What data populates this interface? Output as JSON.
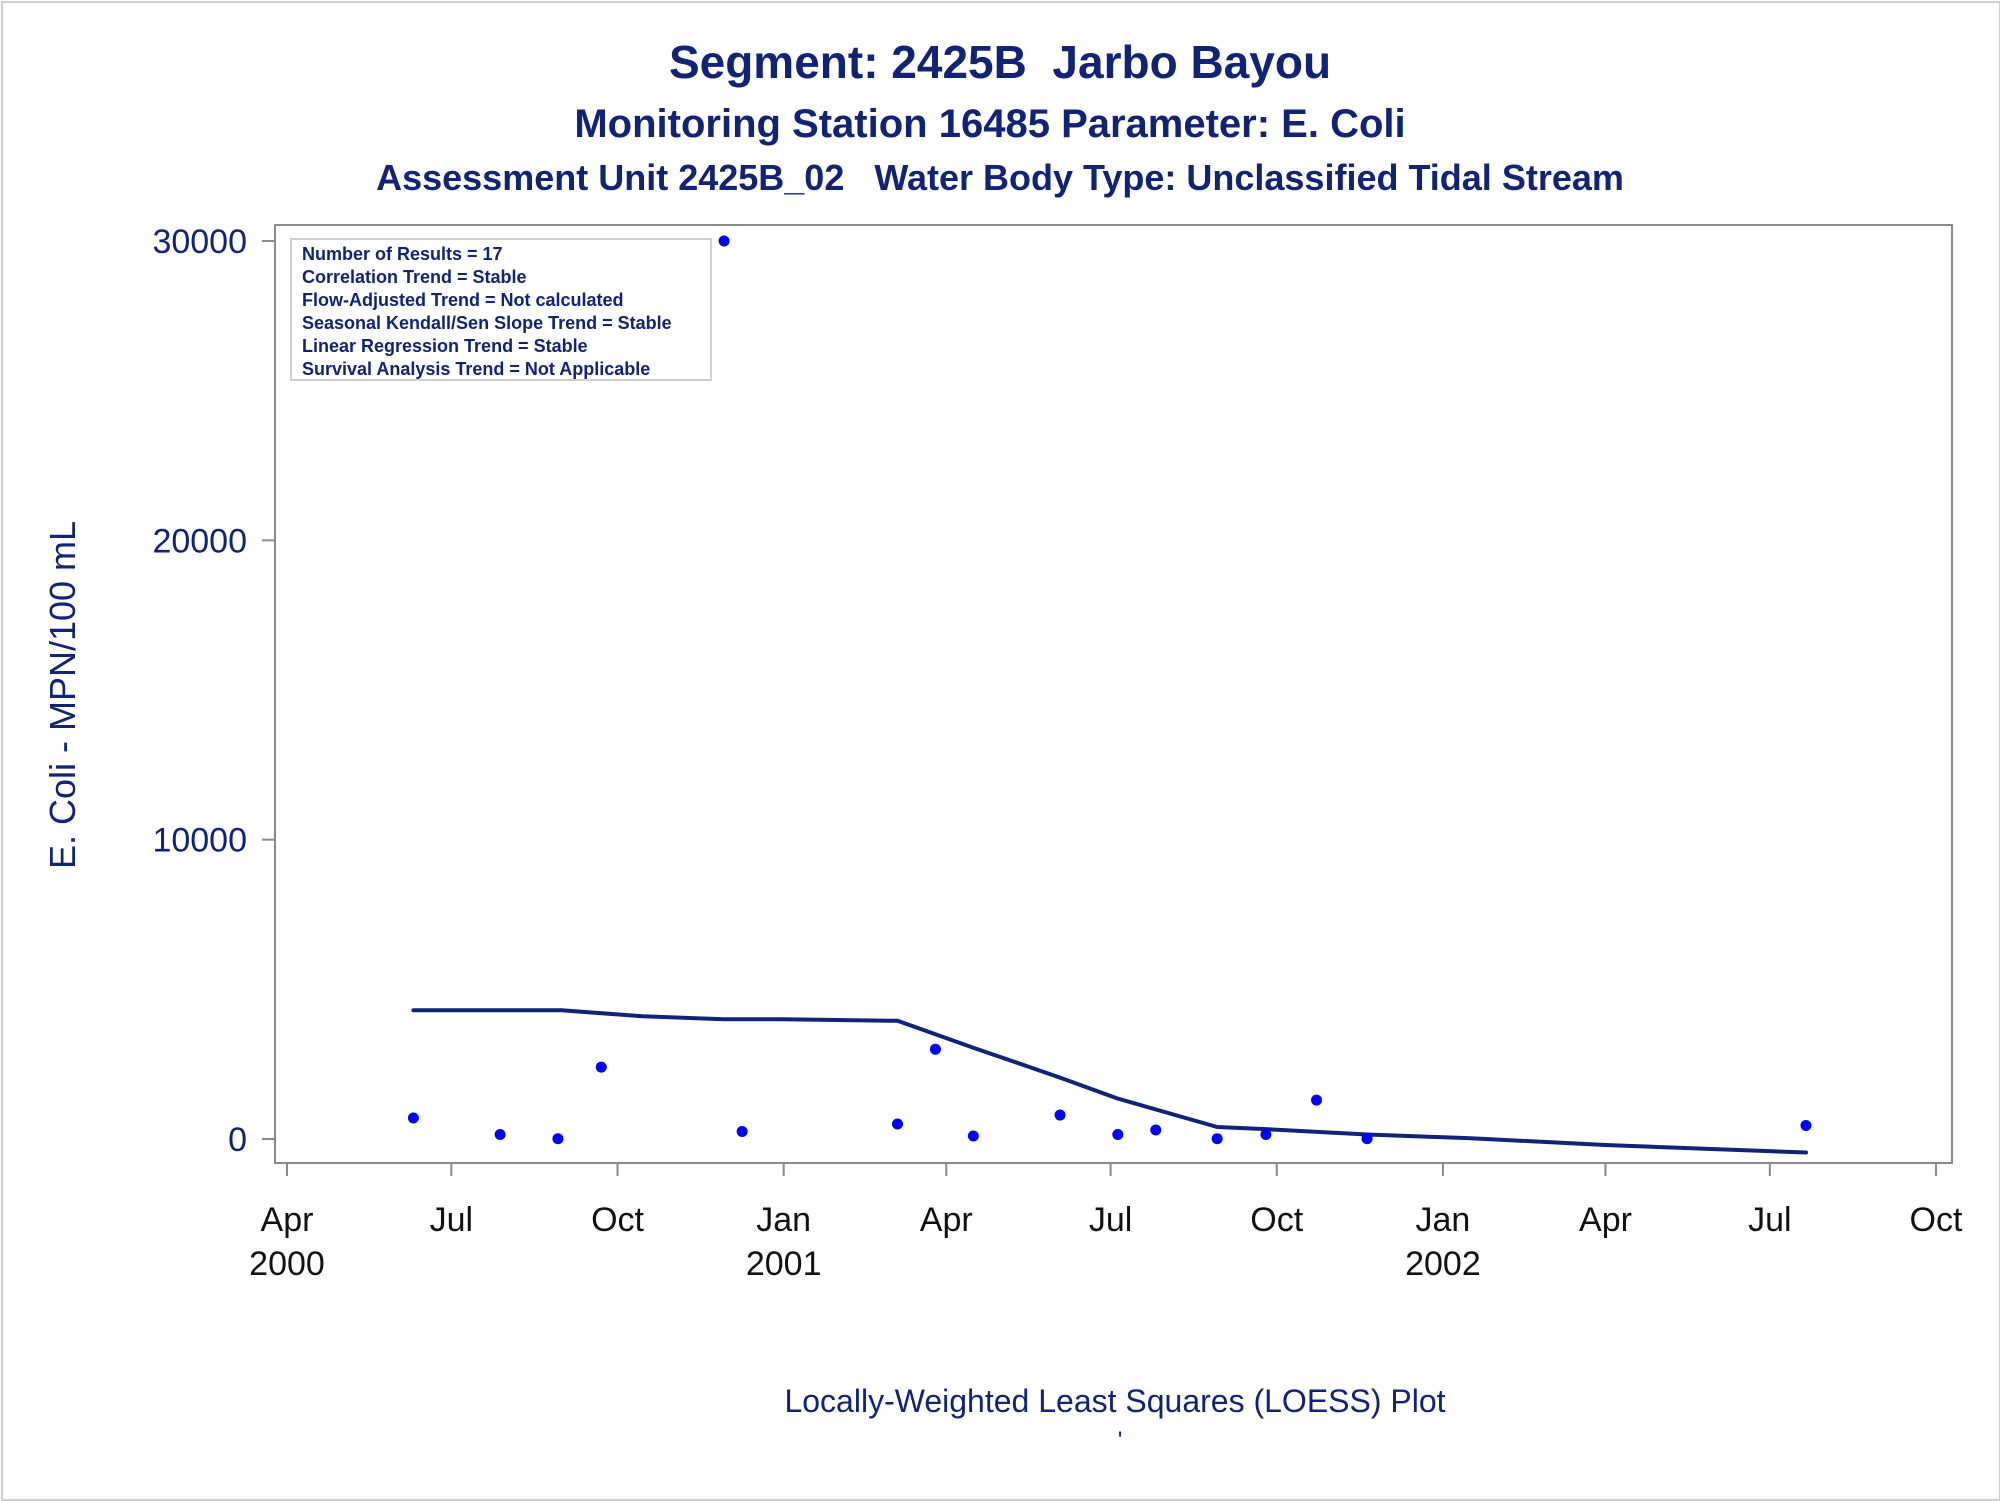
{
  "chart_data": {
    "type": "scatter",
    "title": "Segment: 2425B  Jarbo Bayou",
    "subtitle": "Monitoring Station 16485 Parameter: E. Coli",
    "subtitle2": "Assessment Unit 2425B_02   Water Body Type: Unclassified Tidal Stream",
    "ylabel": "E. Coli - MPN/100 mL",
    "footnote": "Locally-Weighted Least Squares (LOESS) Plot",
    "footnote_mark": "'",
    "ylim": [
      0,
      30000
    ],
    "y_ticks": [
      0,
      10000,
      20000,
      30000
    ],
    "xlim": [
      "2000-04-01",
      "2002-10-01"
    ],
    "x_ticks": [
      {
        "date": "2000-04-01",
        "label": "Apr",
        "year": "2000"
      },
      {
        "date": "2000-07-01",
        "label": "Jul",
        "year": ""
      },
      {
        "date": "2000-10-01",
        "label": "Oct",
        "year": ""
      },
      {
        "date": "2001-01-01",
        "label": "Jan",
        "year": "2001"
      },
      {
        "date": "2001-04-01",
        "label": "Apr",
        "year": ""
      },
      {
        "date": "2001-07-01",
        "label": "Jul",
        "year": ""
      },
      {
        "date": "2001-10-01",
        "label": "Oct",
        "year": ""
      },
      {
        "date": "2002-01-01",
        "label": "Jan",
        "year": "2002"
      },
      {
        "date": "2002-04-01",
        "label": "Apr",
        "year": ""
      },
      {
        "date": "2002-07-01",
        "label": "Jul",
        "year": ""
      },
      {
        "date": "2002-10-01",
        "label": "Oct",
        "year": ""
      }
    ],
    "stats_box": [
      "Number of Results = 17",
      "Correlation Trend = Stable",
      "Flow-Adjusted Trend = Not calculated",
      "Seasonal Kendall/Sen Slope Trend = Stable",
      "Linear Regression Trend = Stable",
      "Survival Analysis Trend = Not Applicable"
    ],
    "series": [
      {
        "kind": "points",
        "color": "#0000ff",
        "points": [
          {
            "x": "2000-06-10",
            "y": 700
          },
          {
            "x": "2000-07-28",
            "y": 150
          },
          {
            "x": "2000-08-29",
            "y": 10
          },
          {
            "x": "2000-09-22",
            "y": 2400
          },
          {
            "x": "2000-11-29",
            "y": 30000
          },
          {
            "x": "2000-12-09",
            "y": 250
          },
          {
            "x": "2001-03-05",
            "y": 500
          },
          {
            "x": "2001-03-26",
            "y": 3000
          },
          {
            "x": "2001-04-16",
            "y": 100
          },
          {
            "x": "2001-06-03",
            "y": 800
          },
          {
            "x": "2001-07-05",
            "y": 150
          },
          {
            "x": "2001-07-26",
            "y": 300
          },
          {
            "x": "2001-08-29",
            "y": 10
          },
          {
            "x": "2001-09-25",
            "y": 150
          },
          {
            "x": "2001-10-23",
            "y": 1300
          },
          {
            "x": "2001-11-20",
            "y": 10
          },
          {
            "x": "2002-07-21",
            "y": 450
          }
        ]
      },
      {
        "kind": "line",
        "color": "#112277",
        "points": [
          {
            "x": "2000-06-10",
            "y": 4300
          },
          {
            "x": "2000-08-31",
            "y": 4300
          },
          {
            "x": "2000-10-15",
            "y": 4100
          },
          {
            "x": "2000-11-29",
            "y": 4000
          },
          {
            "x": "2000-12-31",
            "y": 4000
          },
          {
            "x": "2001-03-05",
            "y": 3950
          },
          {
            "x": "2001-04-16",
            "y": 3050
          },
          {
            "x": "2001-06-03",
            "y": 2050
          },
          {
            "x": "2001-07-05",
            "y": 1350
          },
          {
            "x": "2001-08-29",
            "y": 400
          },
          {
            "x": "2001-09-25",
            "y": 330
          },
          {
            "x": "2001-11-20",
            "y": 150
          },
          {
            "x": "2002-01-15",
            "y": 30
          },
          {
            "x": "2002-04-01",
            "y": -200
          },
          {
            "x": "2002-07-21",
            "y": -450
          }
        ]
      }
    ],
    "colors": {
      "text": "#112277",
      "axis": "#8a8a8a",
      "points": "#0000ff",
      "line": "#112277"
    }
  }
}
